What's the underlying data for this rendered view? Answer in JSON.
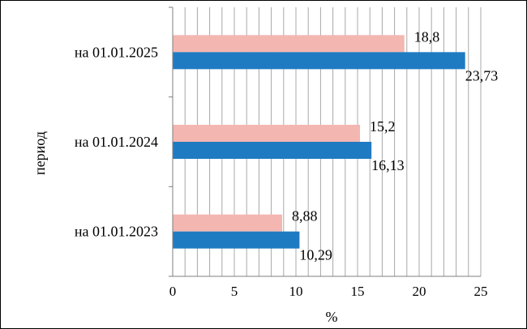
{
  "chart_data": {
    "type": "bar",
    "orientation": "horizontal",
    "categories": [
      "на 01.01.2023",
      "на 01.01.2024",
      "на 01.01.2025"
    ],
    "series": [
      {
        "color": "#f4b6b1",
        "values": [
          8.88,
          15.2,
          18.8
        ],
        "labels": [
          "8,88",
          "15,2",
          "18,8"
        ]
      },
      {
        "color": "#1f7bc1",
        "values": [
          10.29,
          16.13,
          23.73
        ],
        "labels": [
          "10,29",
          "16,13",
          "23,73"
        ]
      }
    ],
    "xlabel": "%",
    "ylabel": "период",
    "xlim": [
      0,
      25
    ],
    "xticks": [
      0,
      5,
      10,
      15,
      20,
      25
    ],
    "xtick_labels": [
      "0",
      "5",
      "10",
      "15",
      "20",
      "25"
    ],
    "minor_grid_step": 1,
    "grid": true,
    "legend": "none"
  }
}
